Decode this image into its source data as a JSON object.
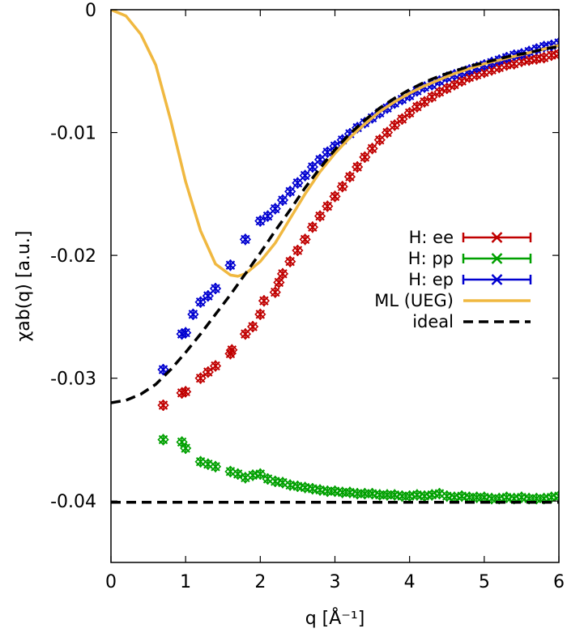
{
  "chart_data": {
    "type": "scatter",
    "title": "",
    "xlabel": "q [Å⁻¹]",
    "ylabel": "χab(q) [a.u.]",
    "xlim": [
      0,
      6
    ],
    "ylim": [
      -0.045,
      0
    ],
    "x_ticks": [
      0,
      1,
      2,
      3,
      4,
      5,
      6
    ],
    "x_tick_labels": [
      "0",
      "1",
      "2",
      "3",
      "4",
      "5",
      "6"
    ],
    "y_ticks": [
      0,
      -0.01,
      -0.02,
      -0.03,
      -0.04
    ],
    "y_tick_labels": [
      "0",
      "-0.01",
      "-0.02",
      "-0.03",
      "-0.04"
    ],
    "grid": false,
    "legend_position": "right-middle",
    "series": [
      {
        "name": "H: ee",
        "style": "points-errorbars",
        "color": "#c00000",
        "x": [
          0.7,
          0.95,
          1.0,
          1.2,
          1.3,
          1.4,
          1.6,
          1.62,
          1.8,
          1.9,
          2.0,
          2.05,
          2.2,
          2.25,
          2.3,
          2.4,
          2.5,
          2.6,
          2.7,
          2.8,
          2.9,
          3.0,
          3.1,
          3.2,
          3.3,
          3.4,
          3.5,
          3.6,
          3.7,
          3.8,
          3.9,
          4.0,
          4.1,
          4.2,
          4.3,
          4.4,
          4.5,
          4.6,
          4.7,
          4.8,
          4.9,
          5.0,
          5.1,
          5.2,
          5.3,
          5.4,
          5.5,
          5.6,
          5.7,
          5.8,
          5.9,
          6.0
        ],
        "y": [
          -0.0322,
          -0.0312,
          -0.0311,
          -0.03,
          -0.0295,
          -0.029,
          -0.028,
          -0.0277,
          -0.0264,
          -0.0258,
          -0.0248,
          -0.0237,
          -0.023,
          -0.0222,
          -0.0215,
          -0.0205,
          -0.0196,
          -0.0187,
          -0.0177,
          -0.0168,
          -0.016,
          -0.0152,
          -0.0144,
          -0.0136,
          -0.0128,
          -0.012,
          -0.0113,
          -0.0106,
          -0.01,
          -0.0094,
          -0.0089,
          -0.0084,
          -0.0079,
          -0.0075,
          -0.0071,
          -0.0067,
          -0.0064,
          -0.0061,
          -0.0058,
          -0.0055,
          -0.0053,
          -0.0051,
          -0.0049,
          -0.0047,
          -0.0045,
          -0.0044,
          -0.0042,
          -0.0041,
          -0.004,
          -0.0039,
          -0.0037,
          -0.0036
        ]
      },
      {
        "name": "H: pp",
        "style": "points-errorbars",
        "color": "#00a000",
        "x": [
          0.7,
          0.95,
          1.0,
          1.2,
          1.3,
          1.4,
          1.6,
          1.7,
          1.8,
          1.9,
          2.0,
          2.1,
          2.2,
          2.3,
          2.4,
          2.5,
          2.6,
          2.7,
          2.8,
          2.9,
          3.0,
          3.1,
          3.2,
          3.3,
          3.4,
          3.5,
          3.6,
          3.7,
          3.8,
          3.9,
          4.0,
          4.1,
          4.2,
          4.3,
          4.4,
          4.5,
          4.6,
          4.7,
          4.8,
          4.9,
          5.0,
          5.1,
          5.2,
          5.3,
          5.4,
          5.5,
          5.6,
          5.7,
          5.8,
          5.9,
          6.0
        ],
        "y": [
          -0.035,
          -0.0352,
          -0.0357,
          -0.0368,
          -0.037,
          -0.0372,
          -0.0376,
          -0.0378,
          -0.0381,
          -0.0379,
          -0.0378,
          -0.0382,
          -0.0384,
          -0.0385,
          -0.0387,
          -0.0388,
          -0.0389,
          -0.039,
          -0.0391,
          -0.0392,
          -0.0392,
          -0.0393,
          -0.0393,
          -0.0394,
          -0.0394,
          -0.0394,
          -0.0395,
          -0.0395,
          -0.0395,
          -0.0396,
          -0.0396,
          -0.0395,
          -0.0396,
          -0.0395,
          -0.0394,
          -0.0396,
          -0.0397,
          -0.0396,
          -0.0397,
          -0.0397,
          -0.0397,
          -0.0398,
          -0.0398,
          -0.0397,
          -0.0398,
          -0.0397,
          -0.0398,
          -0.0398,
          -0.0398,
          -0.0397,
          -0.0396
        ]
      },
      {
        "name": "H: ep",
        "style": "points-errorbars",
        "color": "#0000d0",
        "x": [
          0.7,
          0.95,
          1.0,
          1.1,
          1.2,
          1.3,
          1.4,
          1.6,
          1.8,
          2.0,
          2.1,
          2.2,
          2.3,
          2.4,
          2.5,
          2.6,
          2.7,
          2.8,
          2.9,
          3.0,
          3.1,
          3.2,
          3.3,
          3.4,
          3.5,
          3.6,
          3.7,
          3.8,
          3.9,
          4.0,
          4.1,
          4.2,
          4.3,
          4.4,
          4.5,
          4.6,
          4.7,
          4.8,
          4.9,
          5.0,
          5.1,
          5.2,
          5.3,
          5.4,
          5.5,
          5.6,
          5.7,
          5.8,
          5.9,
          6.0
        ],
        "y": [
          -0.0293,
          -0.0264,
          -0.0263,
          -0.0248,
          -0.0238,
          -0.0233,
          -0.0227,
          -0.0208,
          -0.0187,
          -0.0172,
          -0.0168,
          -0.0162,
          -0.0155,
          -0.0148,
          -0.0141,
          -0.0135,
          -0.0128,
          -0.0122,
          -0.0116,
          -0.0111,
          -0.0106,
          -0.0101,
          -0.0096,
          -0.0092,
          -0.0088,
          -0.0084,
          -0.008,
          -0.0076,
          -0.0073,
          -0.007,
          -0.0066,
          -0.0063,
          -0.0061,
          -0.0058,
          -0.0055,
          -0.0053,
          -0.0051,
          -0.0049,
          -0.0047,
          -0.0045,
          -0.0043,
          -0.0041,
          -0.0039,
          -0.0037,
          -0.0036,
          -0.0034,
          -0.0032,
          -0.003,
          -0.0029,
          -0.0027
        ]
      },
      {
        "name": "ML (UEG)",
        "style": "solid-line",
        "color": "#f0b840",
        "x": [
          0,
          0.2,
          0.4,
          0.6,
          0.8,
          1.0,
          1.2,
          1.4,
          1.6,
          1.7,
          1.8,
          2.0,
          2.2,
          2.4,
          2.6,
          2.8,
          3.0,
          3.2,
          3.4,
          3.6,
          3.8,
          4.0,
          4.2,
          4.4,
          4.6,
          4.8,
          5.0,
          5.2,
          5.4,
          5.6,
          5.8,
          6.0
        ],
        "y": [
          0,
          -0.0005,
          -0.002,
          -0.0045,
          -0.009,
          -0.014,
          -0.018,
          -0.0207,
          -0.0216,
          -0.0217,
          -0.0215,
          -0.0205,
          -0.019,
          -0.017,
          -0.015,
          -0.0132,
          -0.0117,
          -0.0104,
          -0.0093,
          -0.0083,
          -0.0075,
          -0.0068,
          -0.0062,
          -0.0057,
          -0.0052,
          -0.0048,
          -0.0044,
          -0.0041,
          -0.0038,
          -0.0035,
          -0.0032,
          -0.0029
        ]
      },
      {
        "name": "ideal",
        "style": "dashed-line",
        "color": "#000000",
        "x": [
          0,
          0.2,
          0.4,
          0.6,
          0.8,
          1.0,
          1.2,
          1.4,
          1.6,
          1.8,
          2.0,
          2.2,
          2.4,
          2.6,
          2.8,
          3.0,
          3.2,
          3.4,
          3.6,
          3.8,
          4.0,
          4.2,
          4.4,
          4.6,
          4.8,
          5.0,
          5.2,
          5.4,
          5.6,
          5.8,
          6.0
        ],
        "y": [
          -0.032,
          -0.0318,
          -0.0313,
          -0.0305,
          -0.0293,
          -0.0279,
          -0.0264,
          -0.0248,
          -0.0232,
          -0.0215,
          -0.0198,
          -0.018,
          -0.0163,
          -0.0145,
          -0.0129,
          -0.0114,
          -0.0101,
          -0.009,
          -0.008,
          -0.0072,
          -0.0065,
          -0.0059,
          -0.0054,
          -0.005,
          -0.0046,
          -0.0043,
          -0.004,
          -0.0037,
          -0.0035,
          -0.0032,
          -0.003
        ]
      },
      {
        "name": "",
        "style": "dashed-line",
        "color": "#000000",
        "x": [
          0,
          6
        ],
        "y": [
          -0.0401,
          -0.0401
        ]
      }
    ]
  }
}
